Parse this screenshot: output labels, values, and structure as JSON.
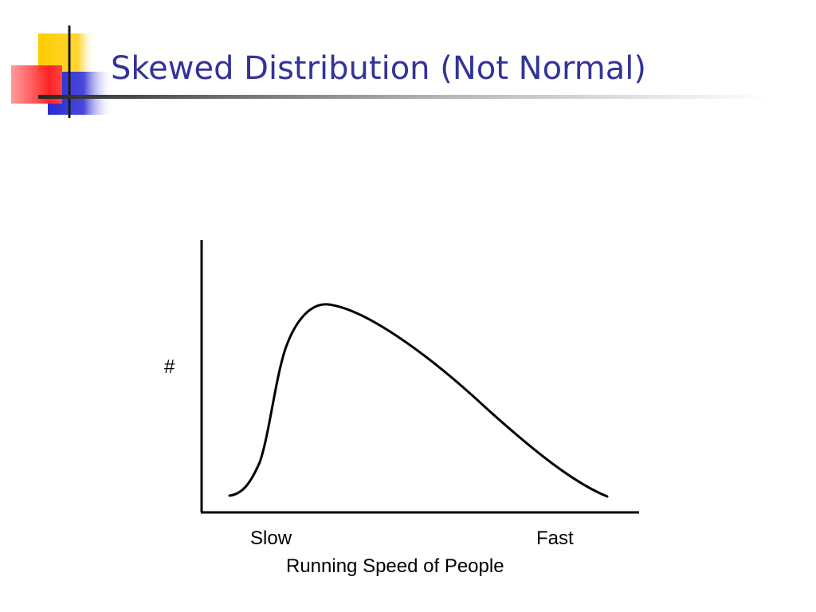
{
  "slide": {
    "title": "Skewed Distribution (Not Normal)"
  },
  "colors": {
    "title": "#333399",
    "deco_yellow": "#ffcc00",
    "deco_red": "#ff3333",
    "deco_blue": "#3333cc",
    "axes": "#000000"
  },
  "diagram": {
    "y_axis_label": "#",
    "x_axis_low_label": "Slow",
    "x_axis_high_label": "Fast",
    "x_axis_label": "Running Speed of People",
    "shape": "right-skewed distribution curve"
  }
}
